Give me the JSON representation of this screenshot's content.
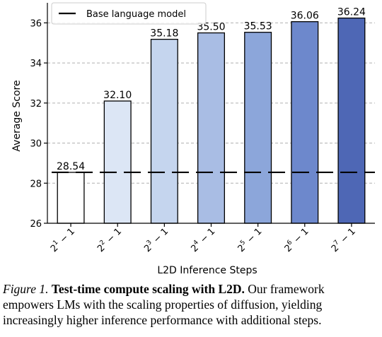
{
  "chart_data": {
    "type": "bar",
    "categories": [
      {
        "base": "2",
        "exp": "1",
        "suffix": " − 1"
      },
      {
        "base": "2",
        "exp": "2",
        "suffix": " − 1"
      },
      {
        "base": "2",
        "exp": "3",
        "suffix": " − 1"
      },
      {
        "base": "2",
        "exp": "4",
        "suffix": " − 1"
      },
      {
        "base": "2",
        "exp": "5",
        "suffix": " − 1"
      },
      {
        "base": "2",
        "exp": "6",
        "suffix": " − 1"
      },
      {
        "base": "2",
        "exp": "7",
        "suffix": " − 1"
      }
    ],
    "values": [
      28.54,
      32.1,
      35.18,
      35.5,
      35.53,
      36.06,
      36.24
    ],
    "data_labels": [
      "28.54",
      "32.10",
      "35.18",
      "35.50",
      "35.53",
      "36.06",
      "36.24"
    ],
    "bar_colors": [
      "#ffffff",
      "#dce6f5",
      "#c5d5ee",
      "#a9bde4",
      "#8ca6da",
      "#6d88cc",
      "#4e67b5"
    ],
    "bar_edge_color": "#000000",
    "baseline": {
      "name": "Base language model",
      "value": 28.54,
      "style": "dashed",
      "color": "#000000"
    },
    "xlabel": "L2D Inference Steps",
    "ylabel": "Average Score",
    "ylim": [
      26,
      37
    ],
    "yticks": [
      26,
      28,
      30,
      32,
      34,
      36
    ],
    "grid": "y-dashed",
    "legend_position": "top-left"
  },
  "caption": {
    "fig_label": "Figure 1.",
    "title": "Test-time compute scaling with L2D.",
    "line1_rest": " Our framework",
    "line2": "empowers LMs with the scaling properties of diffusion, yielding",
    "line3": "increasingly higher inference performance with additional steps."
  }
}
